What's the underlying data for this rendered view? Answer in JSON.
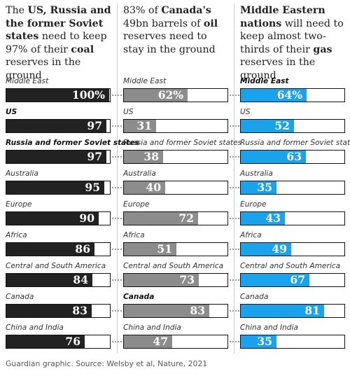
{
  "headlines": [
    [
      {
        "t": "The ",
        "b": false
      },
      {
        "t": "US, Russia and the former Soviet states",
        "b": true
      },
      {
        "t": " need to keep 97% of their ",
        "b": false
      },
      {
        "t": "coal",
        "b": true
      },
      {
        "t": " reserves in the ground",
        "b": false
      }
    ],
    [
      {
        "t": "83% of ",
        "b": false
      },
      {
        "t": "Canada's",
        "b": true
      },
      {
        "t": " 49bn barrels of ",
        "b": false
      },
      {
        "t": "oil",
        "b": true
      },
      {
        "t": " reserves need to stay in the ground",
        "b": false
      }
    ],
    [
      {
        "t": "Middle Eastern nations",
        "b": true
      },
      {
        "t": " will need to keep almost two-thirds of their ",
        "b": false
      },
      {
        "t": "gas",
        "b": true
      },
      {
        "t": " reserves in the ground",
        "b": false
      }
    ]
  ],
  "source": "Guardian graphic. Source: Welsby et al, Nature, 2021",
  "colors": {
    "coal": "#222222",
    "oil": "#8c8c8c",
    "gas": "#1aa3ec",
    "border": "#111111"
  },
  "chart_data": [
    {
      "type": "bar",
      "categories": [
        "Middle East",
        "US",
        "Russia and former Soviet states",
        "Australia",
        "Europe",
        "Africa",
        "Central and South America",
        "Canada",
        "China and India"
      ],
      "values": [
        100,
        97,
        97,
        95,
        90,
        86,
        84,
        83,
        76
      ],
      "value_labels": [
        "100%",
        "97",
        "97",
        "95",
        "90",
        "86",
        "84",
        "83",
        "76"
      ],
      "highlighted": [
        "US",
        "Russia and former Soviet states"
      ],
      "xlim": [
        0,
        100
      ]
    },
    {
      "type": "bar",
      "categories": [
        "Middle East",
        "US",
        "Russia and former Soviet states",
        "Australia",
        "Europe",
        "Africa",
        "Central and South America",
        "Canada",
        "China and India"
      ],
      "values": [
        62,
        31,
        38,
        40,
        72,
        51,
        73,
        83,
        47
      ],
      "value_labels": [
        "62%",
        "31",
        "38",
        "40",
        "72",
        "51",
        "73",
        "83",
        "47"
      ],
      "highlighted": [
        "Canada"
      ],
      "xlim": [
        0,
        100
      ]
    },
    {
      "type": "bar",
      "categories": [
        "Middle East",
        "US",
        "Russia and former Soviet states",
        "Australia",
        "Europe",
        "Africa",
        "Central and South America",
        "Canada",
        "China and India"
      ],
      "values": [
        64,
        52,
        63,
        35,
        43,
        49,
        67,
        81,
        35
      ],
      "value_labels": [
        "64%",
        "52",
        "63",
        "35",
        "43",
        "49",
        "67",
        "81",
        "35"
      ],
      "highlighted": [
        "Middle East"
      ],
      "xlim": [
        0,
        100
      ]
    }
  ]
}
